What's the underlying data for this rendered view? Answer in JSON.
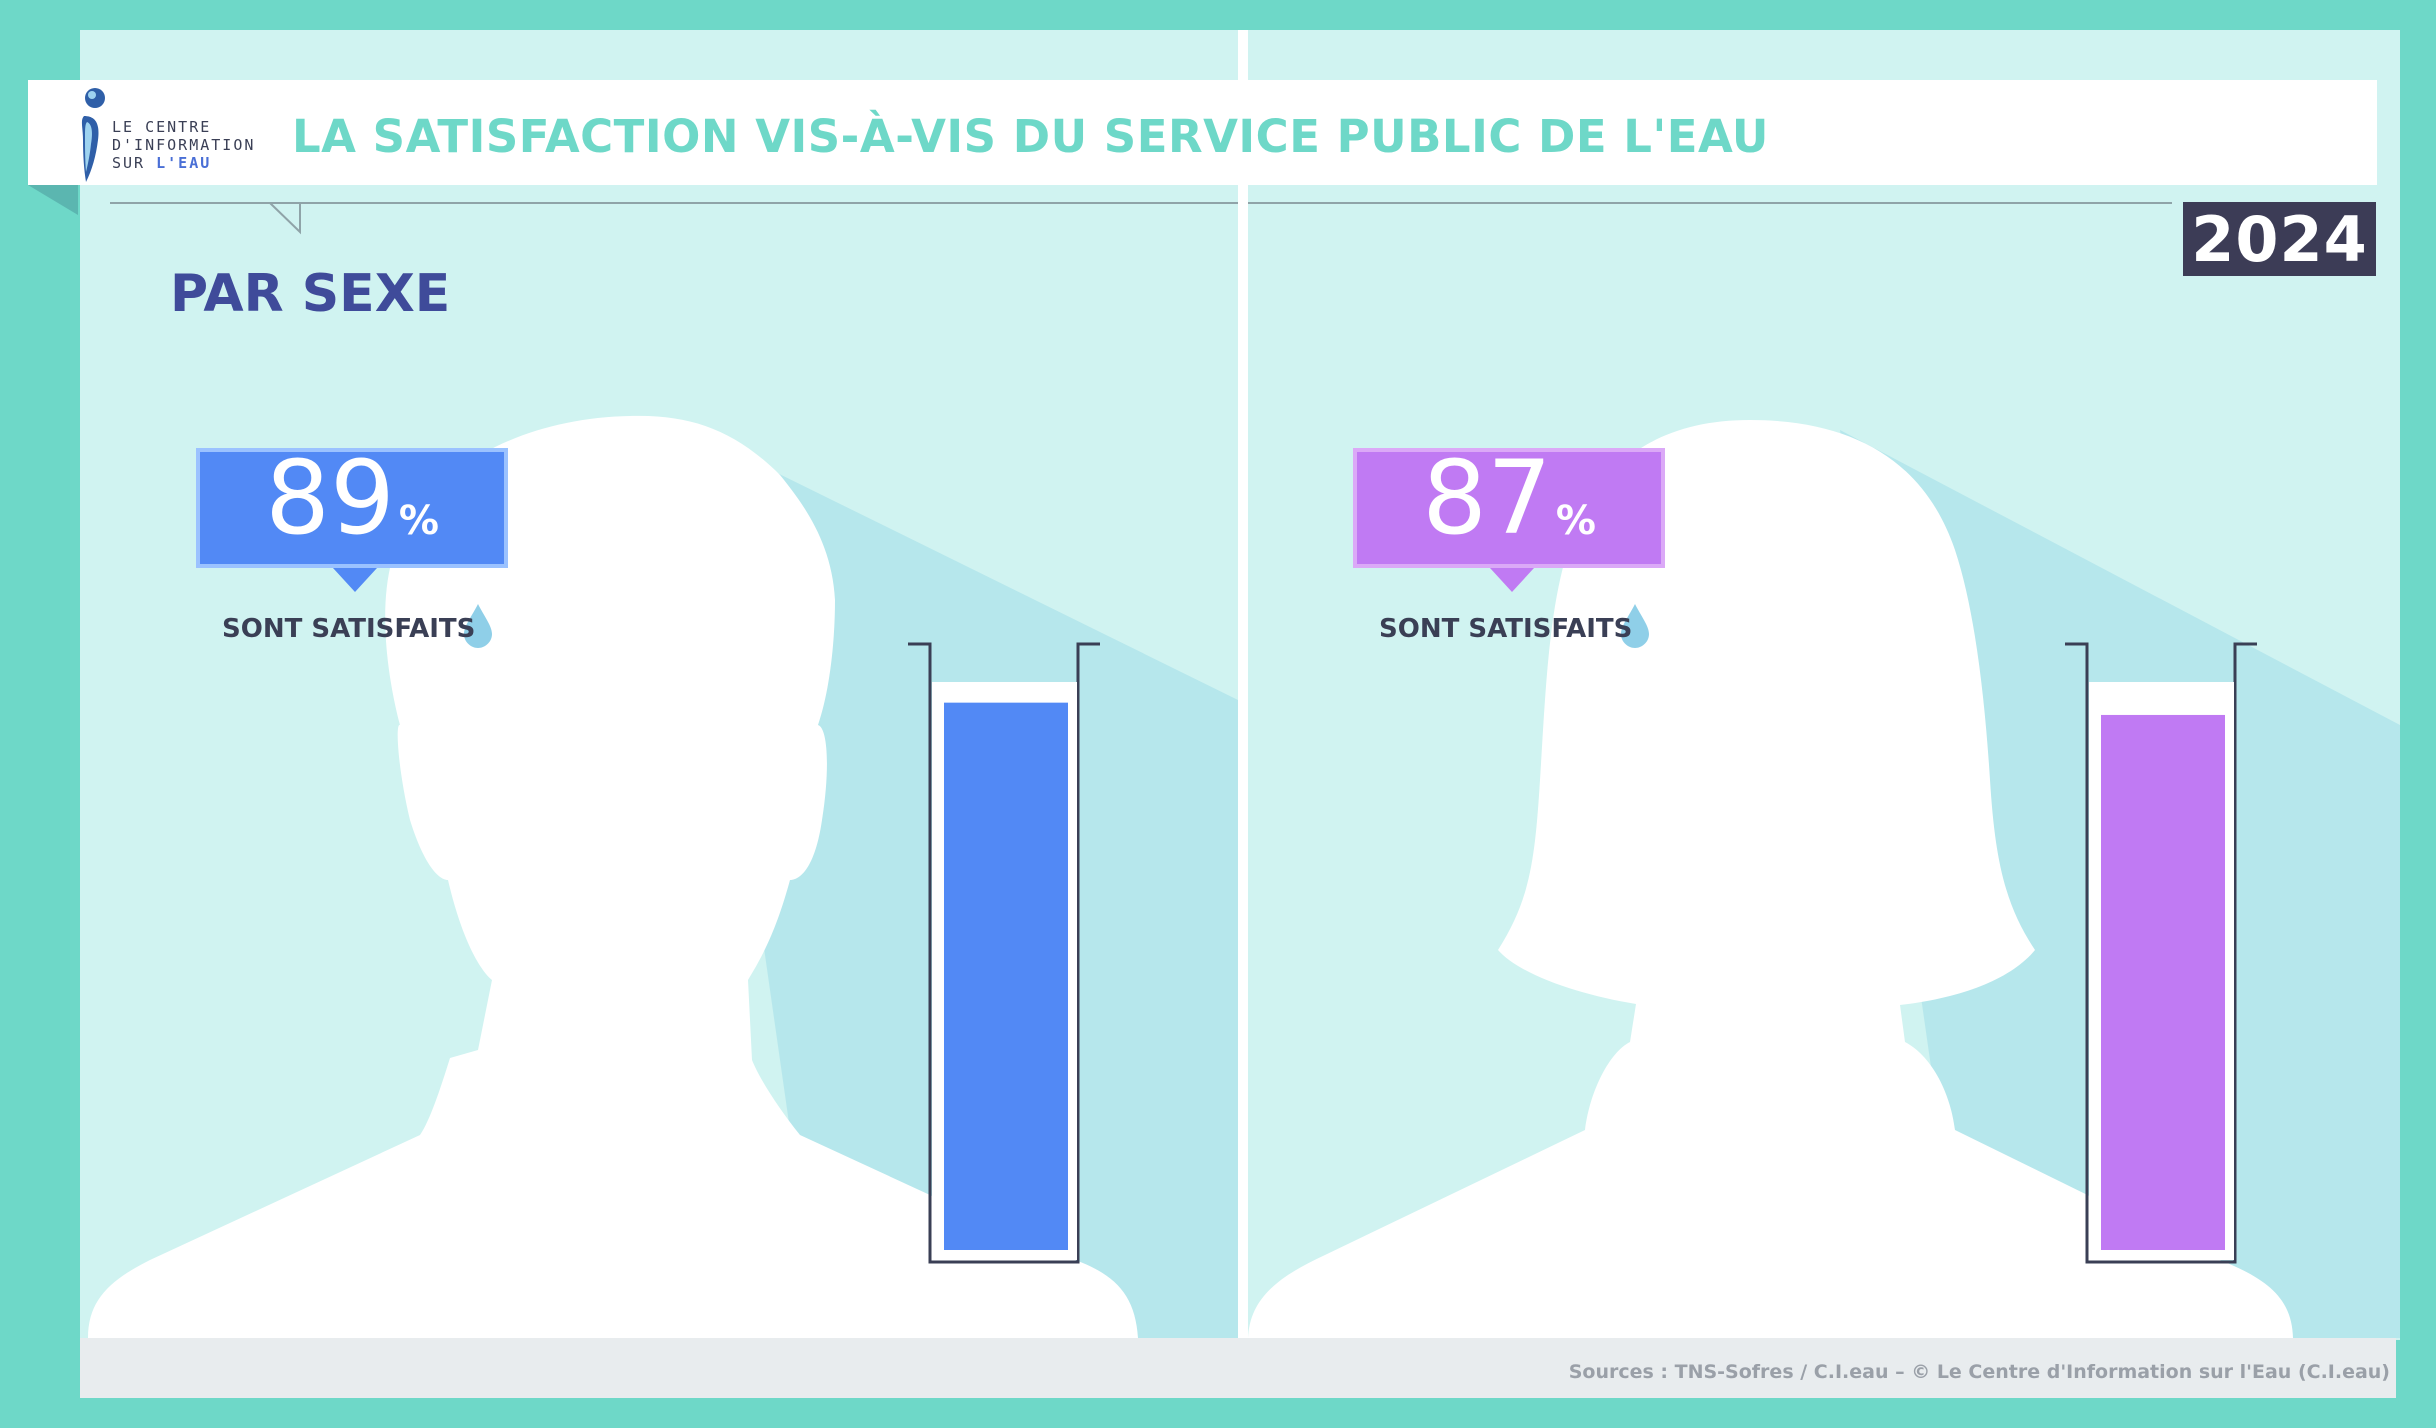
{
  "header": {
    "title": "LA SATISFACTION VIS-À-VIS DU SERVICE PUBLIC DE L'EAU",
    "logo_line1": "LE CENTRE",
    "logo_line2": "D'INFORMATION",
    "logo_line3_prefix": "SUR ",
    "logo_line3_accent": "L'EAU"
  },
  "year": "2024",
  "section_title": "PAR SEXE",
  "panels": [
    {
      "value_text": "89",
      "value_suffix": "%",
      "caption": "SONT SATISFAITS",
      "color": "#5289f5",
      "border_color": "#9bc2ff",
      "silhouette": "male"
    },
    {
      "value_text": "87",
      "value_suffix": "%",
      "caption": "SONT SATISFAITS",
      "color": "#c07af3",
      "border_color": "#dba9f7",
      "silhouette": "female"
    }
  ],
  "chart_data": {
    "type": "bar",
    "categories": [
      "",
      ""
    ],
    "values": [
      89,
      87
    ],
    "ylim": [
      0,
      100
    ],
    "colors": [
      "#5289f5",
      "#c07af3"
    ],
    "title": "LA SATISFACTION VIS-À-VIS DU SERVICE PUBLIC DE L'EAU",
    "subtitle": "PAR SEXE",
    "xlabel": "",
    "ylabel": ""
  },
  "source": "Sources : TNS-Sofres / C.I.eau – © Le Centre d'Information sur l'Eau (C.I.eau)"
}
